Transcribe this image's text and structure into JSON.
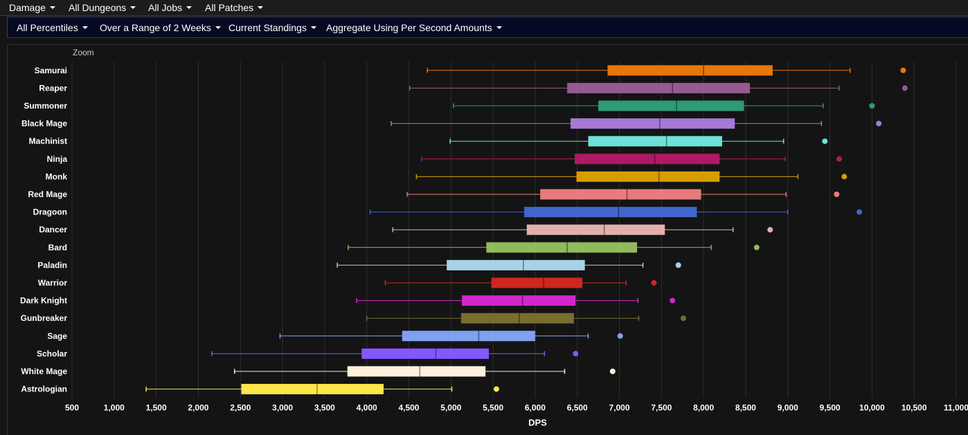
{
  "topbar": {
    "menus": [
      {
        "label": "Damage"
      },
      {
        "label": "All Dungeons"
      },
      {
        "label": "All Jobs"
      },
      {
        "label": "All Patches"
      }
    ]
  },
  "filterbar": {
    "menus": [
      {
        "label": "All Percentiles"
      },
      {
        "label": "Over a Range of 2 Weeks"
      },
      {
        "label": "Current Standings"
      },
      {
        "label": "Aggregate Using Per Second Amounts"
      }
    ]
  },
  "zoom_label": "Zoom",
  "chart_data": {
    "type": "boxplot",
    "orientation": "horizontal",
    "xlabel": "DPS",
    "xlim": [
      500,
      11000
    ],
    "xticks": [
      500,
      1000,
      1500,
      2000,
      2500,
      3000,
      3500,
      4000,
      4500,
      5000,
      5500,
      6000,
      6500,
      7000,
      7500,
      8000,
      8500,
      9000,
      9500,
      10000,
      10500,
      11000
    ],
    "xtick_labels": [
      "500",
      "1,000",
      "1,500",
      "2,000",
      "2,500",
      "3,000",
      "3,500",
      "4,000",
      "4,500",
      "5,000",
      "5,500",
      "6,000",
      "6,500",
      "7,000",
      "7,500",
      "8,000",
      "8,500",
      "9,000",
      "9,500",
      "10,000",
      "10,500",
      "11,000"
    ],
    "grid": true,
    "series": [
      {
        "name": "Samurai",
        "color": "#e8760a",
        "min": 4720,
        "q1": 6860,
        "median": 8000,
        "q3": 8820,
        "max": 9740,
        "outlier": 10370
      },
      {
        "name": "Reaper",
        "color": "#965a90",
        "min": 4510,
        "q1": 6380,
        "median": 7630,
        "q3": 8550,
        "max": 9610,
        "outlier": 10390
      },
      {
        "name": "Summoner",
        "color": "#2d9b78",
        "min": 5030,
        "q1": 6750,
        "median": 7680,
        "q3": 8480,
        "max": 9420,
        "outlier": 10000
      },
      {
        "name": "Black Mage",
        "color": "#a579d6",
        "min": 4290,
        "q1": 6420,
        "median": 7480,
        "q3": 8370,
        "max": 9400,
        "outlier": 10080
      },
      {
        "name": "Machinist",
        "color": "#6ee1d6",
        "min": 4990,
        "q1": 6630,
        "median": 7560,
        "q3": 8220,
        "max": 8950,
        "outlier": 9440
      },
      {
        "name": "Ninja",
        "color": "#af1964",
        "min": 4650,
        "q1": 6470,
        "median": 7420,
        "q3": 8190,
        "max": 8970,
        "outlier": 9610
      },
      {
        "name": "Monk",
        "color": "#d69c00",
        "min": 4590,
        "q1": 6490,
        "median": 7470,
        "q3": 8190,
        "max": 9120,
        "outlier": 9670
      },
      {
        "name": "Red Mage",
        "color": "#e87b7b",
        "min": 4480,
        "q1": 6060,
        "median": 7090,
        "q3": 7970,
        "max": 8980,
        "outlier": 9580
      },
      {
        "name": "Dragoon",
        "color": "#4164cd",
        "min": 4040,
        "q1": 5870,
        "median": 6990,
        "q3": 7920,
        "max": 9000,
        "outlier": 9850
      },
      {
        "name": "Dancer",
        "color": "#e2b0af",
        "min": 4310,
        "q1": 5900,
        "median": 6820,
        "q3": 7540,
        "max": 8350,
        "outlier": 8790
      },
      {
        "name": "Bard",
        "color": "#91ba5e",
        "min": 3780,
        "q1": 5420,
        "median": 6380,
        "q3": 7210,
        "max": 8090,
        "outlier": 8630
      },
      {
        "name": "Paladin",
        "color": "#a8d2e6",
        "min": 3650,
        "q1": 4950,
        "median": 5860,
        "q3": 6590,
        "max": 7280,
        "outlier": 7700
      },
      {
        "name": "Warrior",
        "color": "#cf2621",
        "min": 4220,
        "q1": 5480,
        "median": 6100,
        "q3": 6560,
        "max": 7080,
        "outlier": 7410
      },
      {
        "name": "Dark Knight",
        "color": "#d126cc",
        "min": 3880,
        "q1": 5130,
        "median": 5850,
        "q3": 6480,
        "max": 7220,
        "outlier": 7630
      },
      {
        "name": "Gunbreaker",
        "color": "#796d30",
        "min": 4000,
        "q1": 5120,
        "median": 5810,
        "q3": 6460,
        "max": 7230,
        "outlier": 7760
      },
      {
        "name": "Sage",
        "color": "#80a0f0",
        "min": 2970,
        "q1": 4420,
        "median": 5330,
        "q3": 6000,
        "max": 6630,
        "outlier": 7010
      },
      {
        "name": "Scholar",
        "color": "#8657ff",
        "min": 2160,
        "q1": 3940,
        "median": 4820,
        "q3": 5450,
        "max": 6110,
        "outlier": 6480
      },
      {
        "name": "White Mage",
        "color": "#fff0dc",
        "min": 2430,
        "q1": 3770,
        "median": 4630,
        "q3": 5410,
        "max": 6350,
        "outlier": 6920
      },
      {
        "name": "Astrologian",
        "color": "#ffe74a",
        "min": 1380,
        "q1": 2510,
        "median": 3410,
        "q3": 4200,
        "max": 5010,
        "outlier": 5540
      }
    ]
  }
}
